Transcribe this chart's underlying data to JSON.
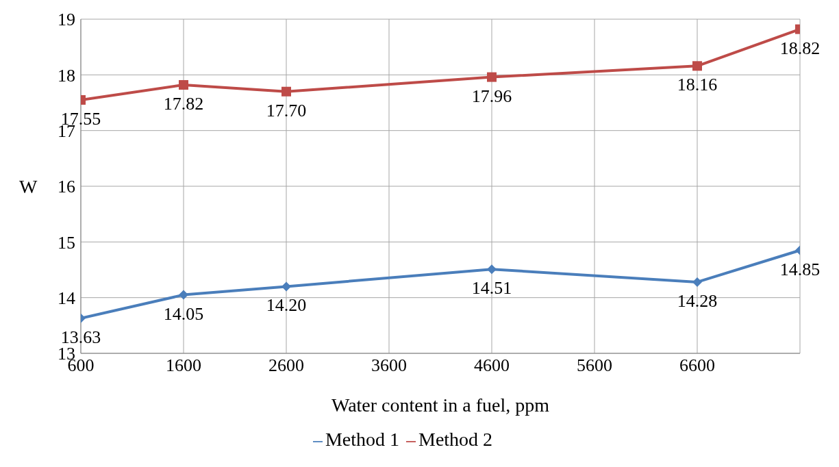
{
  "chart_data": {
    "type": "line",
    "xlabel": "Water content in a fuel, ppm",
    "ylabel": "W",
    "x": [
      600,
      1600,
      2600,
      4600,
      6600,
      7600
    ],
    "series": [
      {
        "name": "Method 1",
        "color": "#4a7ebb",
        "values": [
          13.63,
          14.05,
          14.2,
          14.51,
          14.28,
          14.85
        ],
        "marker": "diamond",
        "value_labels": [
          "13.63",
          "14.05",
          "14.20",
          "14.51",
          "14.28",
          "14.85"
        ]
      },
      {
        "name": "Method 2",
        "color": "#be4b48",
        "values": [
          17.55,
          17.82,
          17.7,
          17.96,
          18.16,
          18.82
        ],
        "marker": "square",
        "value_labels": [
          "17.55",
          "17.82",
          "17.70",
          "17.96",
          "18.16",
          "18.82"
        ]
      }
    ],
    "xlim": [
      600,
      7600
    ],
    "xticks": [
      600,
      1600,
      2600,
      3600,
      4600,
      5600,
      6600
    ],
    "ylim": [
      13,
      19
    ],
    "yticks": [
      13,
      14,
      15,
      16,
      17,
      18,
      19
    ],
    "grid": true,
    "legend": "bottom",
    "line_style": "solid"
  }
}
